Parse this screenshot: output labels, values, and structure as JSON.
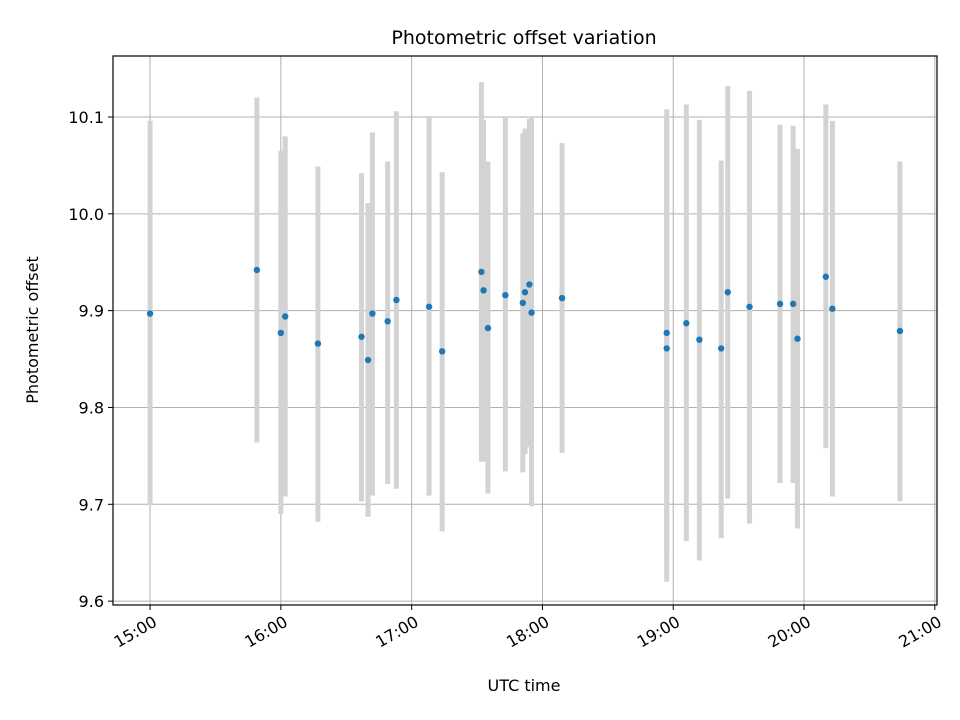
{
  "chart_data": {
    "type": "scatter",
    "title": "Photometric offset variation",
    "xlabel": "UTC time",
    "ylabel": "Photometric offset",
    "x_ticks": [
      "15:00",
      "16:00",
      "17:00",
      "18:00",
      "19:00",
      "20:00",
      "21:00"
    ],
    "y_ticks": [
      "9.6",
      "9.7",
      "9.8",
      "9.9",
      "10.0",
      "10.1"
    ],
    "xlim": [
      "14:43",
      "21:01"
    ],
    "ylim": [
      9.596,
      10.163
    ],
    "grid": true,
    "point_color": "#1f77b4",
    "errorbar_color": "#d3d3d3",
    "points": [
      {
        "t": "15:00",
        "y": 9.897,
        "lo": 9.699,
        "hi": 10.096
      },
      {
        "t": "15:49",
        "y": 9.942,
        "lo": 9.764,
        "hi": 10.12
      },
      {
        "t": "16:00",
        "y": 9.877,
        "lo": 9.69,
        "hi": 10.065
      },
      {
        "t": "16:02",
        "y": 9.894,
        "lo": 9.708,
        "hi": 10.08
      },
      {
        "t": "16:17",
        "y": 9.866,
        "lo": 9.682,
        "hi": 10.049
      },
      {
        "t": "16:37",
        "y": 9.873,
        "lo": 9.703,
        "hi": 10.042
      },
      {
        "t": "16:40",
        "y": 9.849,
        "lo": 9.687,
        "hi": 10.011
      },
      {
        "t": "16:42",
        "y": 9.897,
        "lo": 9.709,
        "hi": 10.084
      },
      {
        "t": "16:49",
        "y": 9.889,
        "lo": 9.721,
        "hi": 10.054
      },
      {
        "t": "16:53",
        "y": 9.911,
        "lo": 9.716,
        "hi": 10.106
      },
      {
        "t": "17:08",
        "y": 9.904,
        "lo": 9.709,
        "hi": 10.1
      },
      {
        "t": "17:14",
        "y": 9.858,
        "lo": 9.672,
        "hi": 10.043
      },
      {
        "t": "17:32",
        "y": 9.94,
        "lo": 9.744,
        "hi": 10.136
      },
      {
        "t": "17:33",
        "y": 9.921,
        "lo": 9.744,
        "hi": 10.097
      },
      {
        "t": "17:35",
        "y": 9.882,
        "lo": 9.711,
        "hi": 10.054
      },
      {
        "t": "17:43",
        "y": 9.916,
        "lo": 9.734,
        "hi": 10.099
      },
      {
        "t": "17:51",
        "y": 9.908,
        "lo": 9.733,
        "hi": 10.083
      },
      {
        "t": "17:52",
        "y": 9.919,
        "lo": 9.752,
        "hi": 10.088
      },
      {
        "t": "17:54",
        "y": 9.927,
        "lo": 9.759,
        "hi": 10.098
      },
      {
        "t": "17:55",
        "y": 9.898,
        "lo": 9.698,
        "hi": 10.1
      },
      {
        "t": "18:09",
        "y": 9.913,
        "lo": 9.753,
        "hi": 10.073
      },
      {
        "t": "18:57",
        "y": 9.877,
        "lo": 9.645,
        "hi": 10.108
      },
      {
        "t": "18:57",
        "y": 9.861,
        "lo": 9.62,
        "hi": 10.1
      },
      {
        "t": "19:06",
        "y": 9.887,
        "lo": 9.662,
        "hi": 10.113
      },
      {
        "t": "19:12",
        "y": 9.87,
        "lo": 9.642,
        "hi": 10.097
      },
      {
        "t": "19:22",
        "y": 9.861,
        "lo": 9.665,
        "hi": 10.055
      },
      {
        "t": "19:25",
        "y": 9.919,
        "lo": 9.706,
        "hi": 10.132
      },
      {
        "t": "19:35",
        "y": 9.904,
        "lo": 9.68,
        "hi": 10.127
      },
      {
        "t": "19:49",
        "y": 9.907,
        "lo": 9.722,
        "hi": 10.092
      },
      {
        "t": "19:55",
        "y": 9.907,
        "lo": 9.722,
        "hi": 10.091
      },
      {
        "t": "19:57",
        "y": 9.871,
        "lo": 9.675,
        "hi": 10.067
      },
      {
        "t": "20:10",
        "y": 9.935,
        "lo": 9.758,
        "hi": 10.113
      },
      {
        "t": "20:13",
        "y": 9.902,
        "lo": 9.708,
        "hi": 10.096
      },
      {
        "t": "20:44",
        "y": 9.879,
        "lo": 9.703,
        "hi": 10.054
      }
    ]
  }
}
